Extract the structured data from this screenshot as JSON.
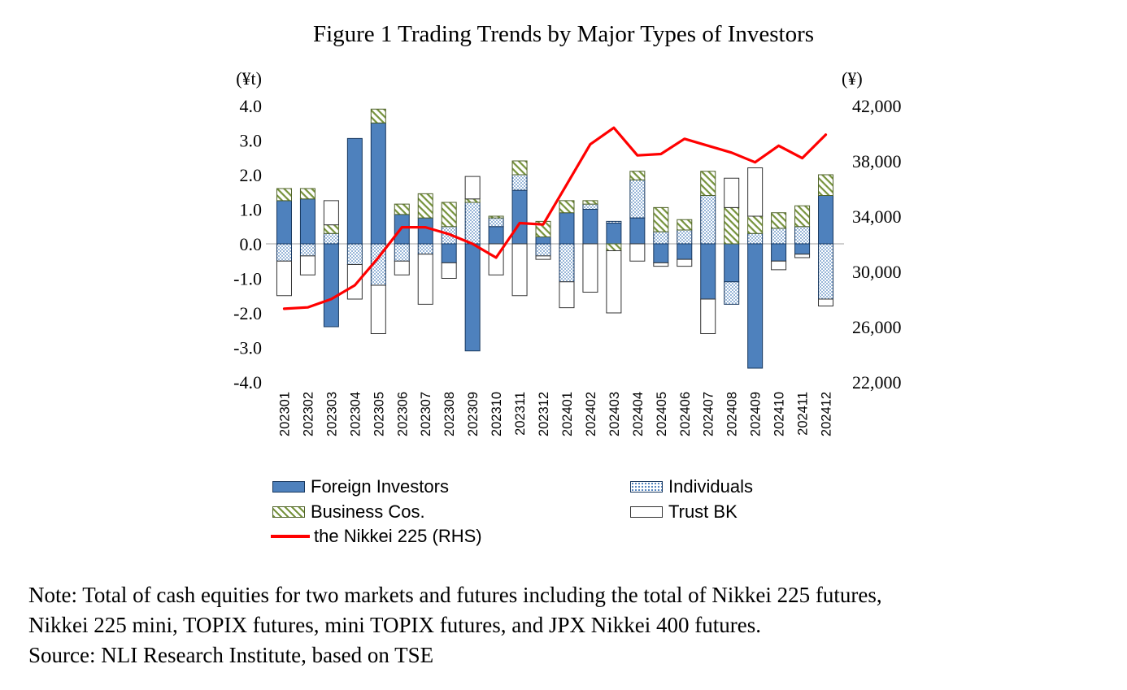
{
  "title": "Figure 1 Trading Trends by Major Types of Investors",
  "left_axis_unit": "(¥t)",
  "right_axis_unit": "(¥)",
  "legend": {
    "foreign": "Foreign Investors",
    "individuals": "Individuals",
    "business": "Business Cos.",
    "trust": "Trust BK",
    "nikkei": "the Nikkei 225 (RHS)"
  },
  "notes": {
    "line1": "Note: Total of cash equities for two markets and futures including the total of Nikkei 225 futures,",
    "line2": "Nikkei 225 mini, TOPIX futures, mini TOPIX futures, and JPX Nikkei 400 futures.",
    "line3": "Source: NLI Research Institute, based on TSE"
  },
  "colors": {
    "foreign_fill": "#4E81BD",
    "foreign_stroke": "#17375E",
    "individuals_dot": "#4E81BD",
    "business_hatch": "#76933C",
    "business_stroke": "#4F6228",
    "trust_stroke": "#333333",
    "nikkei_line": "#FF0000",
    "zero_line": "#BFBFBF"
  },
  "chart_data": {
    "type": "bar",
    "subtype": "stacked-bars-with-line",
    "title": "Figure 1 Trading Trends by Major Types of Investors",
    "categories": [
      "202301",
      "202302",
      "202303",
      "202304",
      "202305",
      "202306",
      "202307",
      "202308",
      "202309",
      "202310",
      "202311",
      "202312",
      "202401",
      "202402",
      "202403",
      "202404",
      "202405",
      "202406",
      "202407",
      "202408",
      "202409",
      "202410",
      "202411",
      "202412"
    ],
    "left_axis": {
      "unit": "(¥t)",
      "min": -4.0,
      "max": 4.0,
      "tick_step": 1.0,
      "ticks": [
        "4.0",
        "3.0",
        "2.0",
        "1.0",
        "0.0",
        "-1.0",
        "-2.0",
        "-3.0",
        "-4.0"
      ]
    },
    "right_axis": {
      "unit": "(¥)",
      "min": 22000,
      "max": 42000,
      "tick_step": 4000,
      "ticks": [
        "42,000",
        "38,000",
        "34,000",
        "30,000",
        "26,000",
        "22,000"
      ]
    },
    "series": [
      {
        "name": "Foreign Investors",
        "style": "solid-blue",
        "values": [
          1.25,
          1.3,
          -2.4,
          3.05,
          3.5,
          0.85,
          0.75,
          -0.55,
          -3.1,
          0.5,
          1.55,
          0.2,
          0.9,
          1.0,
          0.6,
          0.75,
          -0.55,
          -0.45,
          -1.6,
          -1.1,
          -3.6,
          -0.5,
          -0.3,
          1.4
        ]
      },
      {
        "name": "Individuals",
        "style": "blue-dots",
        "values": [
          -0.5,
          -0.35,
          0.3,
          -0.6,
          -1.2,
          -0.5,
          -0.3,
          0.5,
          1.2,
          0.25,
          0.45,
          -0.35,
          -1.1,
          0.15,
          0.05,
          1.1,
          0.35,
          0.4,
          1.4,
          -0.65,
          0.3,
          0.45,
          0.5,
          -1.6
        ]
      },
      {
        "name": "Business Cos.",
        "style": "green-hatch",
        "values": [
          0.35,
          0.3,
          0.25,
          0.0,
          0.4,
          0.3,
          0.7,
          0.7,
          0.1,
          0.05,
          0.4,
          0.45,
          0.35,
          0.1,
          -0.2,
          0.25,
          0.7,
          0.3,
          0.7,
          1.05,
          0.5,
          0.45,
          0.6,
          0.6
        ]
      },
      {
        "name": "Trust BK",
        "style": "white",
        "values": [
          -1.0,
          -0.55,
          0.7,
          -1.0,
          -1.4,
          -0.4,
          -1.45,
          -0.45,
          0.65,
          -0.9,
          -1.5,
          -0.1,
          -0.75,
          -1.4,
          -1.8,
          -0.5,
          -0.1,
          -0.2,
          -1.0,
          0.85,
          1.4,
          -0.25,
          -0.1,
          -0.2
        ]
      }
    ],
    "line_series": {
      "name": "the Nikkei 225 (RHS)",
      "axis": "right",
      "values": [
        27300,
        27400,
        28000,
        29000,
        31000,
        33200,
        33200,
        32700,
        32000,
        31000,
        33500,
        33400,
        36300,
        39200,
        40400,
        38400,
        38500,
        39600,
        39100,
        38600,
        37900,
        39100,
        38200,
        39900
      ]
    },
    "legend_position": "bottom",
    "grid": "zero-line-only"
  }
}
